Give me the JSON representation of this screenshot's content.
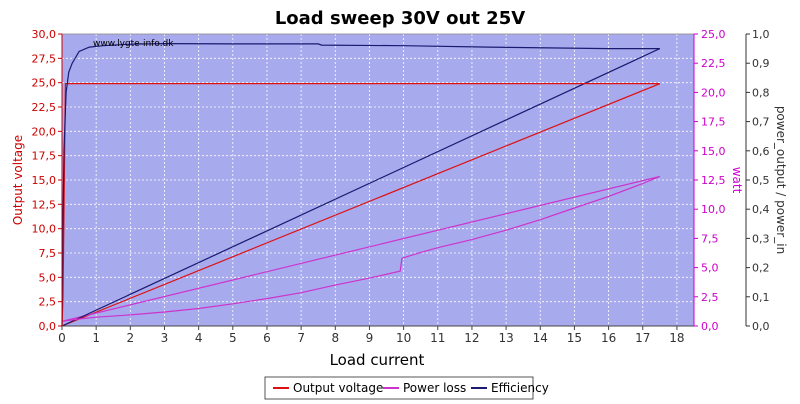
{
  "chart_data": {
    "type": "line",
    "title": "Load sweep 30V out 25V",
    "watermark": "www.lygte-info.dk",
    "xlabel": "Load current",
    "xlim": [
      0,
      18.5
    ],
    "x_ticks": [
      0,
      1,
      2,
      3,
      4,
      5,
      6,
      7,
      8,
      9,
      10,
      11,
      12,
      13,
      14,
      15,
      16,
      17,
      18
    ],
    "grid": true,
    "plot_background": "#a8aaee",
    "legend_position": "bottom-center",
    "axes": {
      "left": {
        "label": "Output voltage",
        "range": [
          0,
          30
        ],
        "ticks": [
          "0,0",
          "2,5",
          "5,0",
          "7,5",
          "10,0",
          "12,5",
          "15,0",
          "17,5",
          "20,0",
          "22,5",
          "25,0",
          "27,5",
          "30,0"
        ],
        "color": "#cc0000"
      },
      "middle": {
        "label": "watt",
        "range": [
          0,
          25
        ],
        "ticks": [
          "0,0",
          "2,5",
          "5,0",
          "7,5",
          "10,0",
          "12,5",
          "15,0",
          "17,5",
          "20,0",
          "22,5",
          "25,0"
        ],
        "color": "#cc00cc"
      },
      "right": {
        "label": "power_output / power_in",
        "range": [
          0,
          1
        ],
        "ticks": [
          "0,0",
          "0,1",
          "0,2",
          "0,3",
          "0,4",
          "0,5",
          "0,6",
          "0,7",
          "0,8",
          "0,9",
          "1,0"
        ],
        "color": "#333333"
      }
    },
    "series": [
      {
        "name": "Output voltage",
        "axis": "left",
        "color": "#dd1111",
        "points": [
          [
            0,
            0
          ],
          [
            0.03,
            3
          ],
          [
            0.06,
            12
          ],
          [
            0.1,
            24.9
          ],
          [
            0.2,
            24.9
          ],
          [
            17.5,
            24.9
          ]
        ]
      },
      {
        "name": "Power loss",
        "axis": "middle",
        "color": "#cc33cc",
        "points": [
          [
            0,
            0.4
          ],
          [
            0.5,
            0.6
          ],
          [
            1,
            0.75
          ],
          [
            2,
            0.95
          ],
          [
            3,
            1.2
          ],
          [
            4,
            1.5
          ],
          [
            5,
            1.9
          ],
          [
            6,
            2.35
          ],
          [
            7,
            2.85
          ],
          [
            8,
            3.5
          ],
          [
            9,
            4.1
          ],
          [
            9.9,
            4.7
          ],
          [
            9.95,
            5.8
          ],
          [
            10.5,
            6.3
          ],
          [
            11,
            6.7
          ],
          [
            12,
            7.4
          ],
          [
            13,
            8.2
          ],
          [
            14,
            9.1
          ],
          [
            15,
            10.1
          ],
          [
            16,
            11.1
          ],
          [
            17,
            12.2
          ],
          [
            17.5,
            12.8
          ]
        ]
      },
      {
        "name": "Efficiency",
        "axis": "right",
        "color": "#1a1a70",
        "points": [
          [
            0,
            0
          ],
          [
            0.02,
            0.3
          ],
          [
            0.06,
            0.6
          ],
          [
            0.12,
            0.8
          ],
          [
            0.2,
            0.87
          ],
          [
            0.3,
            0.9
          ],
          [
            0.5,
            0.94
          ],
          [
            0.8,
            0.955
          ],
          [
            1.2,
            0.96
          ],
          [
            2,
            0.965
          ],
          [
            3,
            0.967
          ],
          [
            5,
            0.966
          ],
          [
            7.5,
            0.966
          ],
          [
            7.6,
            0.962
          ],
          [
            10,
            0.96
          ],
          [
            12.5,
            0.955
          ],
          [
            16,
            0.95
          ],
          [
            17.5,
            0.95
          ]
        ]
      }
    ],
    "reference_lines": [
      {
        "series": "Output voltage",
        "axis": "left",
        "from": [
          0,
          0
        ],
        "to": [
          17.5,
          24.9
        ],
        "color": "#dd1111"
      },
      {
        "series": "Power loss",
        "axis": "middle",
        "from": [
          0,
          0.4
        ],
        "to": [
          17.5,
          12.8
        ],
        "color": "#cc33cc"
      },
      {
        "series": "Efficiency",
        "axis": "right",
        "from": [
          0,
          0
        ],
        "to": [
          17.5,
          0.95
        ],
        "color": "#1a1a70"
      }
    ]
  }
}
